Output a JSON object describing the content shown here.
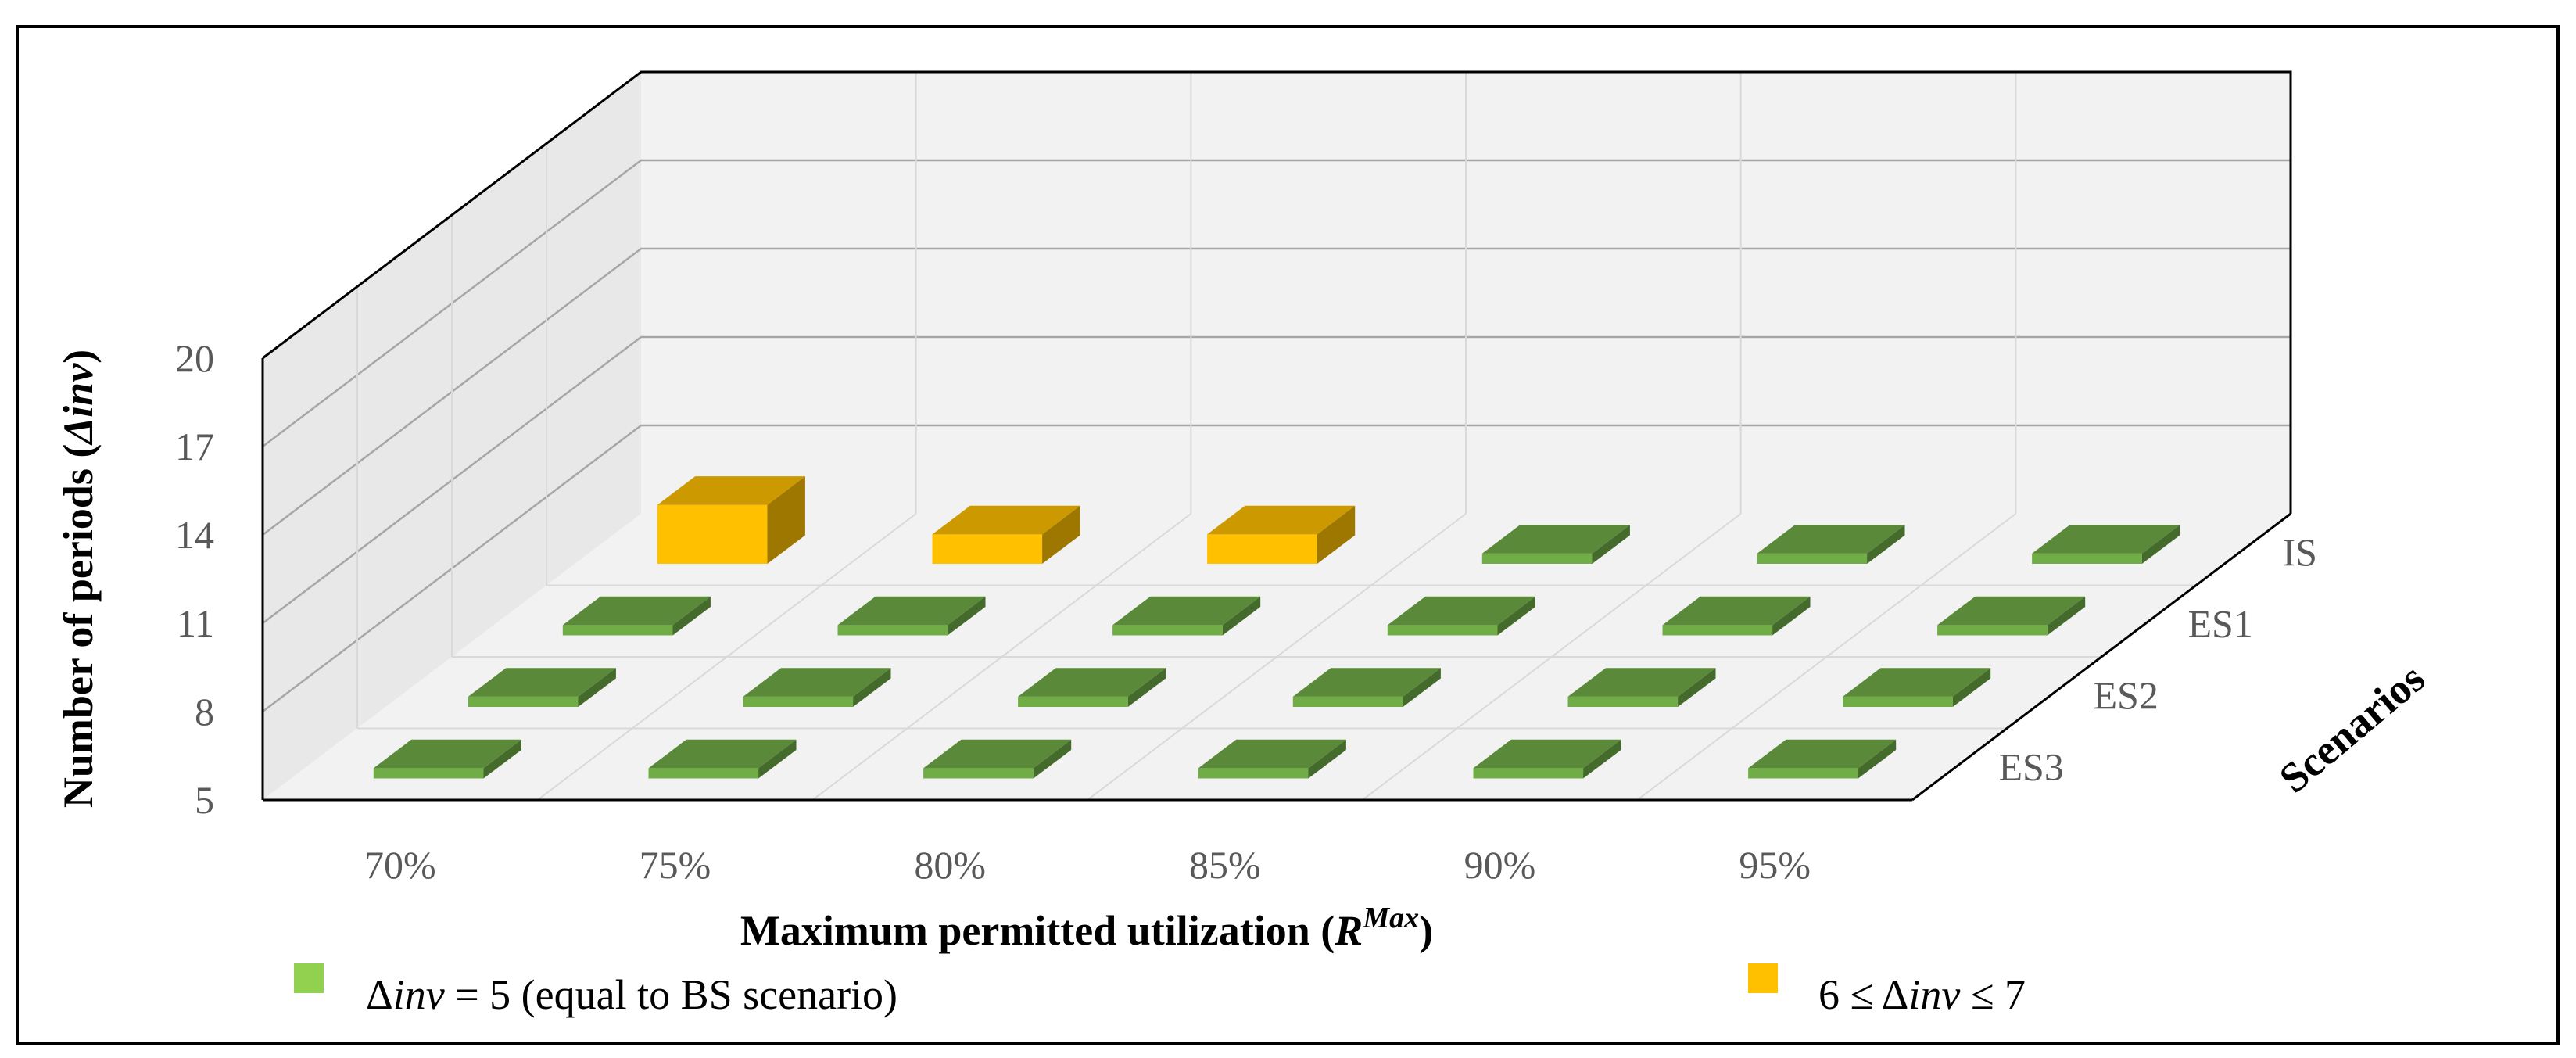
{
  "chart_data": {
    "type": "bar",
    "subtype": "3d-column",
    "x_categories": [
      "70%",
      "75%",
      "80%",
      "85%",
      "90%",
      "95%"
    ],
    "z_categories": [
      "IS",
      "ES1",
      "ES2",
      "ES3"
    ],
    "ylim": [
      5,
      20
    ],
    "yticks": [
      "5",
      "8",
      "11",
      "14",
      "17",
      "20"
    ],
    "ylabel": "Number of periods (Δinv)",
    "ylabel_parts": [
      "Number of periods (",
      "Δ",
      "inv",
      ")"
    ],
    "xlabel": "Maximum permitted utilization (RMax)",
    "xlabel_parts": [
      "Maximum permitted utilization (",
      "R",
      "Max",
      ")"
    ],
    "zlabel": "Scenarios",
    "colors": {
      "green": "#92D050",
      "orange": "#FFC000"
    },
    "legend": [
      {
        "key": "green",
        "text": "Δinv = 5 (equal to BS scenario)",
        "parts": [
          "Δ",
          "inv",
          " = 5 (equal to BS scenario)"
        ]
      },
      {
        "key": "orange",
        "text": "6 ≤ Δinv ≤ 7",
        "parts": [
          "6 ≤ Δ",
          "inv",
          "  ≤ 7"
        ]
      }
    ],
    "series": [
      {
        "name": "IS",
        "values": [
          7,
          6,
          6,
          5,
          5,
          5
        ]
      },
      {
        "name": "ES1",
        "values": [
          5,
          5,
          5,
          5,
          5,
          5
        ]
      },
      {
        "name": "ES2",
        "values": [
          5,
          5,
          5,
          5,
          5,
          5
        ]
      },
      {
        "name": "ES3",
        "values": [
          5,
          5,
          5,
          5,
          5,
          5
        ]
      }
    ]
  }
}
